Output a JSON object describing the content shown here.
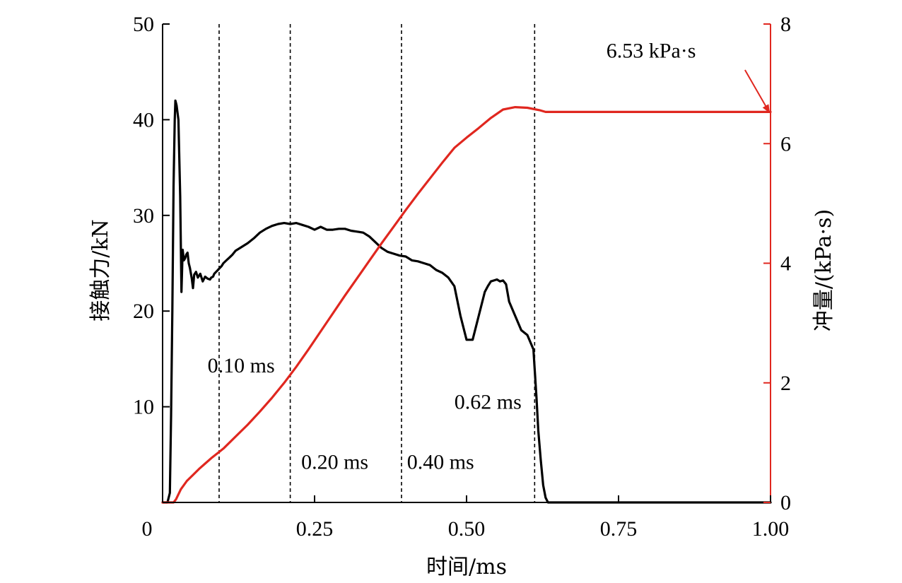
{
  "chart_data": {
    "type": "line",
    "xlabel": "时间/ms",
    "ylabel_left": "接触力/kN",
    "ylabel_right": "冲量/(kPa·s)",
    "xlim": [
      0,
      1.0
    ],
    "ylim_left": [
      0,
      50
    ],
    "ylim_right": [
      0,
      8
    ],
    "x_ticks": [
      {
        "v": 0,
        "label": "0"
      },
      {
        "v": 0.25,
        "label": "0.25"
      },
      {
        "v": 0.5,
        "label": "0.50"
      },
      {
        "v": 0.75,
        "label": "0.75"
      },
      {
        "v": 1.0,
        "label": "1.00"
      }
    ],
    "y_left_ticks": [
      {
        "v": 10,
        "label": "10"
      },
      {
        "v": 20,
        "label": "20"
      },
      {
        "v": 30,
        "label": "30"
      },
      {
        "v": 40,
        "label": "40"
      },
      {
        "v": 50,
        "label": "50"
      }
    ],
    "y_right_ticks": [
      {
        "v": 0,
        "label": "0"
      },
      {
        "v": 2,
        "label": "2"
      },
      {
        "v": 4,
        "label": "4"
      },
      {
        "v": 6,
        "label": "6"
      },
      {
        "v": 8,
        "label": "8"
      }
    ],
    "vlines": [
      0.093,
      0.21,
      0.393,
      0.612
    ],
    "annotations": [
      {
        "text": "0.10 ms",
        "x": 0.074,
        "y": 13.6
      },
      {
        "text": "0.20 ms",
        "x": 0.228,
        "y": 3.5
      },
      {
        "text": "0.40 ms",
        "x": 0.402,
        "y": 3.5
      },
      {
        "text": "0.62 ms",
        "x": 0.48,
        "y": 9.8
      },
      {
        "text": "6.53 kPa·s",
        "x": 0.73,
        "y": 46.5
      }
    ],
    "impulse_label": {
      "text": "6.53 kPa·s",
      "value": 6.53
    },
    "series": [
      {
        "name": "接触力",
        "axis": "left",
        "color": "#000000",
        "x": [
          0,
          0.008,
          0.012,
          0.014,
          0.016,
          0.018,
          0.02,
          0.021,
          0.023,
          0.026,
          0.029,
          0.031,
          0.033,
          0.035,
          0.037,
          0.039,
          0.041,
          0.043,
          0.045,
          0.048,
          0.05,
          0.052,
          0.055,
          0.058,
          0.062,
          0.066,
          0.07,
          0.074,
          0.078,
          0.08,
          0.083,
          0.085,
          0.088,
          0.091,
          0.094,
          0.097,
          0.1,
          0.105,
          0.11,
          0.115,
          0.12,
          0.13,
          0.14,
          0.15,
          0.16,
          0.17,
          0.18,
          0.19,
          0.2,
          0.21,
          0.22,
          0.23,
          0.24,
          0.25,
          0.26,
          0.27,
          0.28,
          0.29,
          0.3,
          0.31,
          0.32,
          0.33,
          0.34,
          0.35,
          0.36,
          0.37,
          0.38,
          0.39,
          0.4,
          0.41,
          0.42,
          0.43,
          0.44,
          0.45,
          0.46,
          0.47,
          0.48,
          0.49,
          0.5,
          0.51,
          0.52,
          0.53,
          0.535,
          0.54,
          0.545,
          0.55,
          0.555,
          0.56,
          0.565,
          0.57,
          0.58,
          0.59,
          0.6,
          0.61,
          0.612,
          0.615,
          0.618,
          0.622,
          0.626,
          0.63,
          0.634,
          0.638,
          0.642,
          0.646,
          0.65,
          0.654,
          0.658,
          0.662,
          0.666,
          0.67,
          0.68,
          0.7,
          0.75,
          0.8,
          0.9,
          1.0
        ],
        "values": [
          0,
          0,
          1,
          9,
          20,
          33,
          40,
          42,
          41.5,
          40,
          32,
          22,
          26.4,
          25.3,
          25.5,
          25.9,
          26.1,
          25,
          24.5,
          23.4,
          22.4,
          23.8,
          24.1,
          23.5,
          23.9,
          23.1,
          23.6,
          23.4,
          23.3,
          23.5,
          23.6,
          23.9,
          24.1,
          24.3,
          24.5,
          24.7,
          25,
          25.3,
          25.6,
          25.9,
          26.3,
          26.7,
          27.1,
          27.6,
          28.2,
          28.6,
          28.9,
          29.1,
          29.2,
          29.1,
          29.2,
          29,
          28.8,
          28.5,
          28.8,
          28.5,
          28.5,
          28.6,
          28.6,
          28.4,
          28.3,
          28.2,
          27.8,
          27.2,
          26.6,
          26.2,
          26,
          25.8,
          25.7,
          25.3,
          25.2,
          25,
          24.8,
          24.3,
          24,
          23.5,
          22.6,
          19.5,
          17,
          17,
          19.5,
          22,
          22.6,
          23.1,
          23.2,
          23.3,
          23.1,
          23.2,
          22.8,
          21,
          19.5,
          18,
          17.5,
          16,
          14,
          11,
          7.5,
          4.5,
          1.8,
          0.5,
          0,
          0,
          0,
          0,
          0,
          0,
          0,
          0,
          0,
          0,
          0,
          0,
          0,
          0,
          0,
          0
        ]
      },
      {
        "name": "冲量",
        "axis": "right",
        "color": "#e0271f",
        "x": [
          0,
          0.018,
          0.022,
          0.03,
          0.04,
          0.05,
          0.06,
          0.07,
          0.08,
          0.09,
          0.1,
          0.12,
          0.14,
          0.16,
          0.18,
          0.2,
          0.22,
          0.24,
          0.26,
          0.28,
          0.3,
          0.32,
          0.34,
          0.36,
          0.38,
          0.4,
          0.42,
          0.44,
          0.46,
          0.48,
          0.5,
          0.52,
          0.54,
          0.56,
          0.58,
          0.6,
          0.62,
          0.63,
          0.64,
          0.65,
          1.0
        ],
        "values": [
          0,
          0,
          0.05,
          0.22,
          0.36,
          0.46,
          0.56,
          0.65,
          0.74,
          0.82,
          0.9,
          1.1,
          1.3,
          1.52,
          1.75,
          2.0,
          2.27,
          2.56,
          2.86,
          3.16,
          3.46,
          3.75,
          4.04,
          4.33,
          4.61,
          4.89,
          5.16,
          5.42,
          5.68,
          5.93,
          6.1,
          6.26,
          6.43,
          6.57,
          6.61,
          6.6,
          6.56,
          6.53,
          6.53,
          6.53,
          6.53
        ]
      }
    ]
  }
}
